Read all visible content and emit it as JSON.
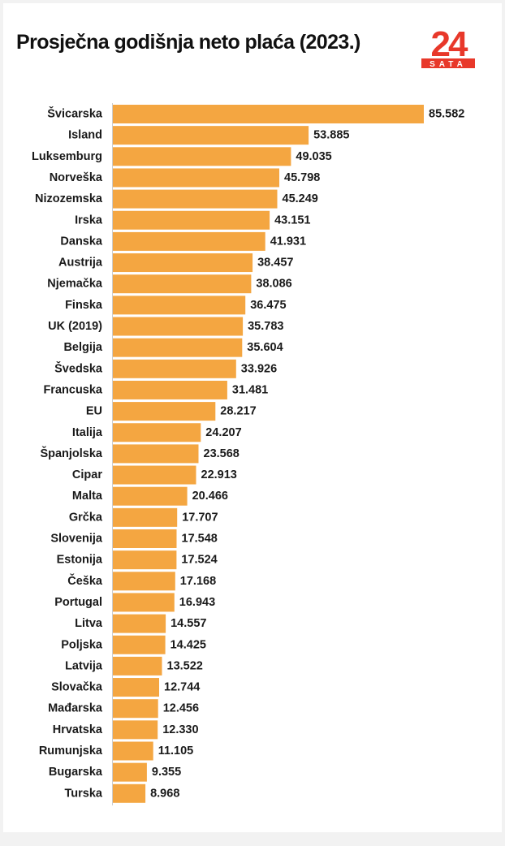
{
  "header": {
    "title": "Prosječna godišnja neto plaća (2023.)"
  },
  "logo": {
    "main_text": "24",
    "sub_text": "SATA",
    "color": "#e8382a"
  },
  "colors": {
    "bar": "#f4a641",
    "axis": "#cccccc",
    "label": "#1a1a1a"
  },
  "chart_data": {
    "type": "bar",
    "orientation": "horizontal",
    "title": "Prosječna godišnja neto plaća (2023.)",
    "categories": [
      "Švicarska",
      "Island",
      "Luksemburg",
      "Norveška",
      "Nizozemska",
      "Irska",
      "Danska",
      "Austrija",
      "Njemačka",
      "Finska",
      "UK (2019)",
      "Belgija",
      "Švedska",
      "Francuska",
      "EU",
      "Italija",
      "Španjolska",
      "Cipar",
      "Malta",
      "Grčka",
      "Slovenija",
      "Estonija",
      "Češka",
      "Portugal",
      "Litva",
      "Poljska",
      "Latvija",
      "Slovačka",
      "Mađarska",
      "Hrvatska",
      "Rumunjska",
      "Bugarska",
      "Turska"
    ],
    "values": [
      85582,
      53885,
      49035,
      45798,
      45249,
      43151,
      41931,
      38457,
      38086,
      36475,
      35783,
      35604,
      33926,
      31481,
      28217,
      24207,
      23568,
      22913,
      20466,
      17707,
      17548,
      17524,
      17168,
      16943,
      14557,
      14425,
      13522,
      12744,
      12456,
      12330,
      11105,
      9355,
      8968
    ],
    "value_labels": [
      "85.582",
      "53.885",
      "49.035",
      "45.798",
      "45.249",
      "43.151",
      "41.931",
      "38.457",
      "38.086",
      "36.475",
      "35.783",
      "35.604",
      "33.926",
      "31.481",
      "28.217",
      "24.207",
      "23.568",
      "22.913",
      "20.466",
      "17.707",
      "17.548",
      "17.524",
      "17.168",
      "16.943",
      "14.557",
      "14.425",
      "13.522",
      "12.744",
      "12.456",
      "12.330",
      "11.105",
      "9.355",
      "8.968"
    ],
    "xlabel": "",
    "ylabel": "",
    "xlim": [
      0,
      85582
    ],
    "grid": false,
    "legend": "none"
  }
}
